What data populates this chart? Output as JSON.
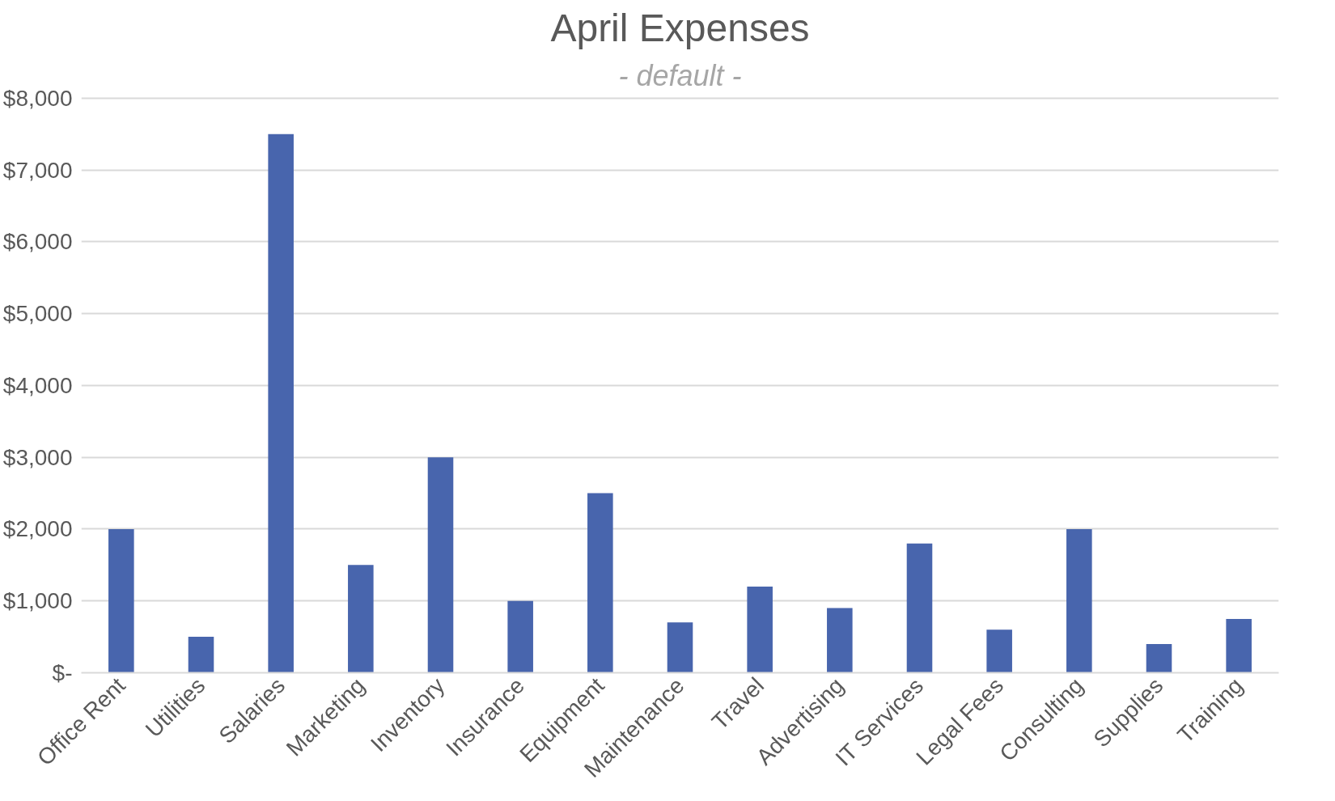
{
  "chart_data": {
    "type": "bar",
    "title": "April Expenses",
    "subtitle": "- default -",
    "categories": [
      "Office Rent",
      "Utilities",
      "Salaries",
      "Marketing",
      "Inventory",
      "Insurance",
      "Equipment",
      "Maintenance",
      "Travel",
      "Advertising",
      "IT Services",
      "Legal Fees",
      "Consulting",
      "Supplies",
      "Training"
    ],
    "values": [
      2000,
      500,
      7500,
      1500,
      3000,
      1000,
      2500,
      700,
      1200,
      900,
      1800,
      600,
      2000,
      400,
      750
    ],
    "color": "#4865ad",
    "ylim": [
      0,
      8000
    ],
    "yticks": [
      {
        "value": 0,
        "label": "$-"
      },
      {
        "value": 1000,
        "label": "$1,000"
      },
      {
        "value": 2000,
        "label": "$2,000"
      },
      {
        "value": 3000,
        "label": "$3,000"
      },
      {
        "value": 4000,
        "label": "$4,000"
      },
      {
        "value": 5000,
        "label": "$5,000"
      },
      {
        "value": 6000,
        "label": "$6,000"
      },
      {
        "value": 7000,
        "label": "$7,000"
      },
      {
        "value": 8000,
        "label": "$8,000"
      }
    ],
    "grid": "y"
  }
}
